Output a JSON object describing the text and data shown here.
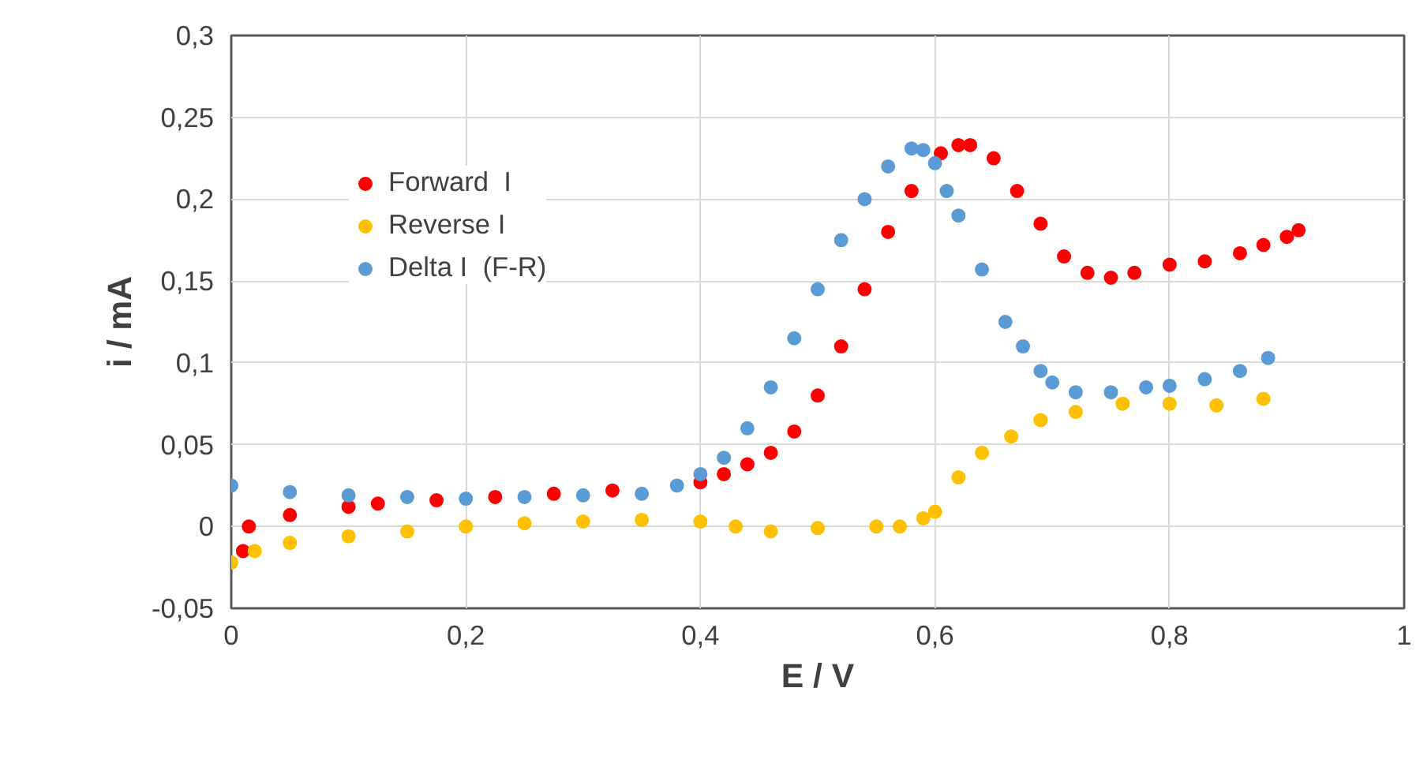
{
  "chart_data": {
    "type": "scatter",
    "xlabel": "E / V",
    "ylabel": "i / mA",
    "xlim": [
      0,
      1
    ],
    "ylim": [
      -0.05,
      0.3
    ],
    "xticks": [
      0,
      {
        "value": 0.2,
        "label": "0,2"
      },
      {
        "value": 0.4,
        "label": "0,4"
      },
      {
        "value": 0.6,
        "label": "0,6"
      },
      {
        "value": 0.8,
        "label": "0,8"
      },
      1
    ],
    "yticks": [
      {
        "value": -0.05,
        "label": "-0,05"
      },
      0,
      {
        "value": 0.05,
        "label": "0,05"
      },
      {
        "value": 0.1,
        "label": "0,1"
      },
      {
        "value": 0.15,
        "label": "0,15"
      },
      {
        "value": 0.2,
        "label": "0,2"
      },
      {
        "value": 0.25,
        "label": "0,25"
      },
      {
        "value": 0.3,
        "label": "0,3"
      }
    ],
    "grid": true,
    "legend": "top left",
    "marker": "circle",
    "series": [
      {
        "name": "Forward  I",
        "color": "#ff0000",
        "x": [
          0.01,
          0.015,
          0.05,
          0.1,
          0.125,
          0.175,
          0.225,
          0.275,
          0.325,
          0.4,
          0.42,
          0.44,
          0.46,
          0.48,
          0.5,
          0.52,
          0.54,
          0.56,
          0.58,
          0.605,
          0.62,
          0.63,
          0.65,
          0.67,
          0.69,
          0.71,
          0.73,
          0.75,
          0.77,
          0.8,
          0.83,
          0.86,
          0.88,
          0.9,
          0.91
        ],
        "values": [
          -0.015,
          0.0,
          0.007,
          0.012,
          0.014,
          0.016,
          0.018,
          0.02,
          0.022,
          0.027,
          0.032,
          0.038,
          0.045,
          0.058,
          0.08,
          0.11,
          0.145,
          0.18,
          0.205,
          0.228,
          0.233,
          0.233,
          0.225,
          0.205,
          0.185,
          0.165,
          0.155,
          0.152,
          0.155,
          0.16,
          0.162,
          0.167,
          0.172,
          0.177,
          0.181
        ]
      },
      {
        "name": "Reverse I",
        "color": "#ffc000",
        "x": [
          0,
          0.02,
          0.05,
          0.1,
          0.15,
          0.2,
          0.25,
          0.3,
          0.35,
          0.4,
          0.43,
          0.46,
          0.5,
          0.55,
          0.57,
          0.59,
          0.6,
          0.62,
          0.64,
          0.665,
          0.69,
          0.72,
          0.76,
          0.8,
          0.84,
          0.88
        ],
        "values": [
          -0.022,
          -0.015,
          -0.01,
          -0.006,
          -0.003,
          0.0,
          0.002,
          0.003,
          0.004,
          0.003,
          0.0,
          -0.003,
          -0.001,
          0.0,
          0.0,
          0.005,
          0.009,
          0.03,
          0.045,
          0.055,
          0.065,
          0.07,
          0.075,
          0.075,
          0.074,
          0.078
        ]
      },
      {
        "name": "Delta I  (F-R)",
        "color": "#5b9bd5",
        "x": [
          0,
          0.05,
          0.1,
          0.15,
          0.2,
          0.25,
          0.3,
          0.35,
          0.38,
          0.4,
          0.42,
          0.44,
          0.46,
          0.48,
          0.5,
          0.52,
          0.54,
          0.56,
          0.58,
          0.59,
          0.6,
          0.61,
          0.62,
          0.64,
          0.66,
          0.675,
          0.69,
          0.7,
          0.72,
          0.75,
          0.78,
          0.8,
          0.83,
          0.86,
          0.884
        ],
        "values": [
          0.025,
          0.021,
          0.019,
          0.018,
          0.017,
          0.018,
          0.019,
          0.02,
          0.025,
          0.032,
          0.042,
          0.06,
          0.085,
          0.115,
          0.145,
          0.175,
          0.2,
          0.22,
          0.231,
          0.23,
          0.222,
          0.205,
          0.19,
          0.157,
          0.125,
          0.11,
          0.095,
          0.088,
          0.082,
          0.082,
          0.085,
          0.086,
          0.09,
          0.095,
          0.103
        ]
      }
    ]
  }
}
